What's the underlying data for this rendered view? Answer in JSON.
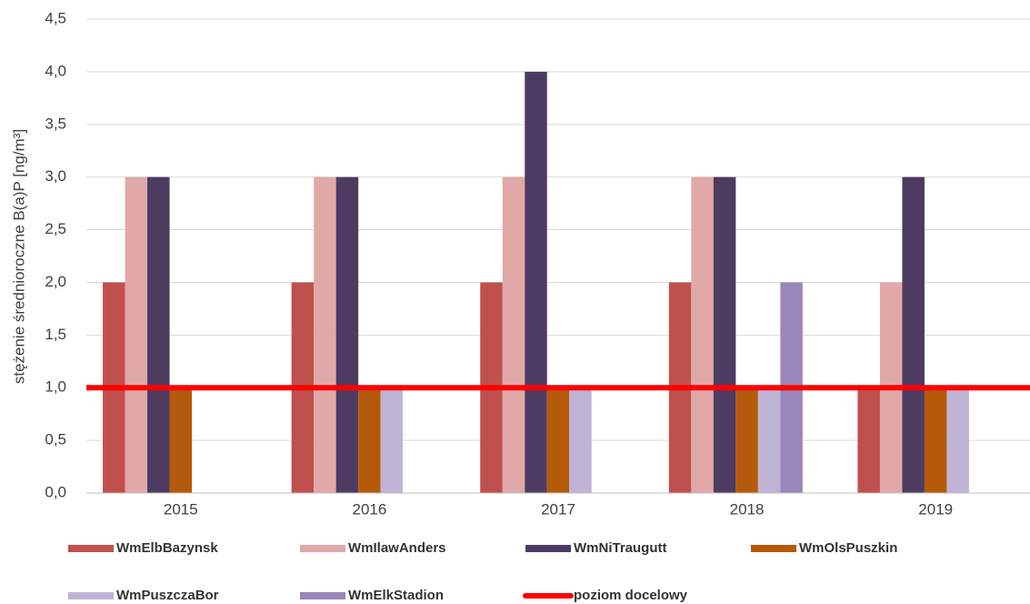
{
  "chart_data": {
    "type": "bar",
    "ylabel": "stężenie średnioroczne B(a)P [ng/m³]",
    "categories": [
      "2015",
      "2016",
      "2017",
      "2018",
      "2019"
    ],
    "series": [
      {
        "name": "WmElbBazynsk",
        "color": "#c0504d",
        "values": [
          2,
          2,
          2,
          2,
          1
        ]
      },
      {
        "name": "WmIlawAnders",
        "color": "#e0a9a7",
        "values": [
          3,
          3,
          3,
          3,
          2
        ]
      },
      {
        "name": "WmNiTraugutt",
        "color": "#4d3b62",
        "values": [
          3,
          3,
          4,
          3,
          3
        ]
      },
      {
        "name": "WmOlsPuszkin",
        "color": "#b55a0b",
        "values": [
          1,
          1,
          1,
          1,
          1
        ]
      },
      {
        "name": "WmPuszczaBor",
        "color": "#bfb4d5",
        "values": [
          null,
          1,
          1,
          1,
          1
        ]
      },
      {
        "name": "WmElkStadion",
        "color": "#9a86b8",
        "values": [
          null,
          null,
          null,
          2,
          null
        ]
      },
      {
        "name": "poziom docelowy",
        "color": "#ff0000",
        "type": "line",
        "values": [
          1,
          1,
          1,
          1,
          1
        ]
      }
    ],
    "ylim": [
      0,
      4.5
    ],
    "yticks": [
      {
        "value": 0,
        "label": "0,0"
      },
      {
        "value": 0.5,
        "label": "0,5"
      },
      {
        "value": 1,
        "label": "1,0"
      },
      {
        "value": 1.5,
        "label": "1,5"
      },
      {
        "value": 2,
        "label": "2,0"
      },
      {
        "value": 2.5,
        "label": "2,5"
      },
      {
        "value": 3,
        "label": "3,0"
      },
      {
        "value": 3.5,
        "label": "3,5"
      },
      {
        "value": 4,
        "label": "4,0"
      },
      {
        "value": 4.5,
        "label": "4,5"
      }
    ],
    "grid": true,
    "legend": "bottom"
  }
}
